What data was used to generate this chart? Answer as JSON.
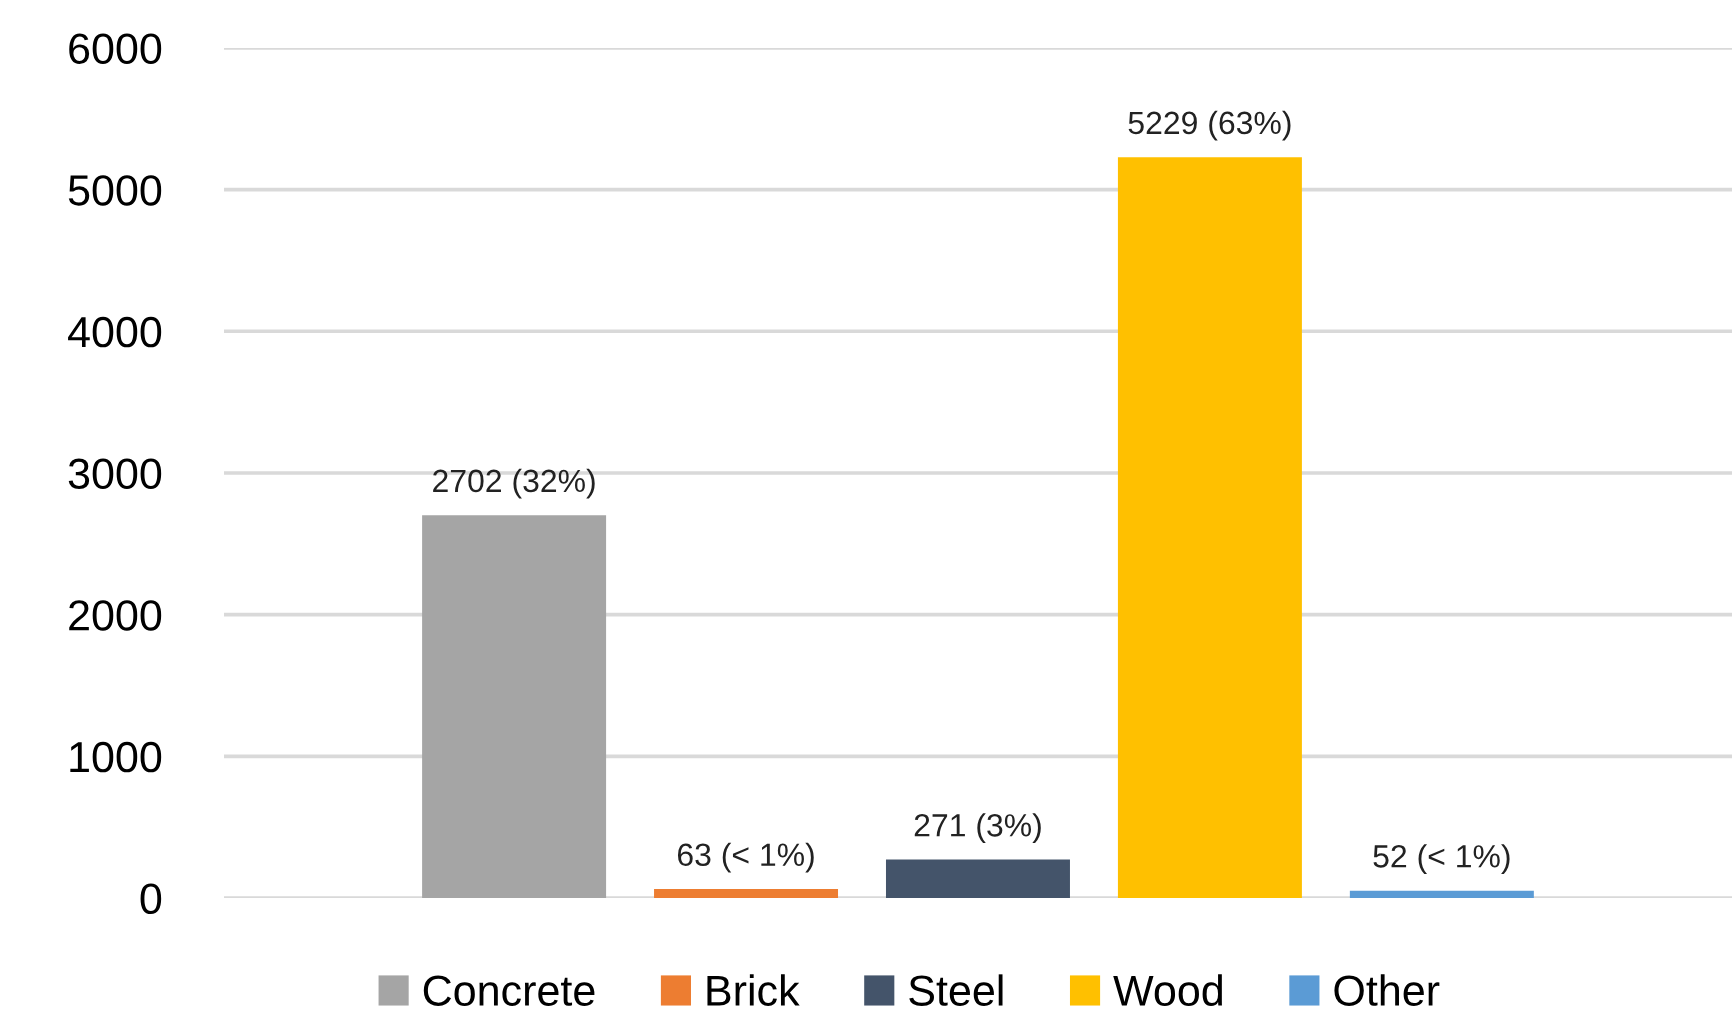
{
  "chart_data": {
    "type": "bar",
    "categories": [
      null
    ],
    "series": [
      {
        "name": "Concrete",
        "color": "#a5a5a5",
        "values": [
          2702
        ],
        "value_labels": [
          "2702 (32%)"
        ]
      },
      {
        "name": "Brick",
        "color": "#ed7d31",
        "values": [
          63
        ],
        "value_labels": [
          "63 (< 1%)"
        ]
      },
      {
        "name": "Steel",
        "color": "#44546a",
        "values": [
          271
        ],
        "value_labels": [
          "271 (3%)"
        ]
      },
      {
        "name": "Wood",
        "color": "#ffc000",
        "values": [
          5229
        ],
        "value_labels": [
          "5229 (63%)"
        ]
      },
      {
        "name": "Other",
        "color": "#5b9bd5",
        "values": [
          52
        ],
        "value_labels": [
          "52 (< 1%)"
        ]
      }
    ],
    "ylim": [
      0,
      6000
    ],
    "yticks": [
      0,
      1000,
      2000,
      3000,
      4000,
      5000,
      6000
    ],
    "grid": "y",
    "legend": "bottom"
  }
}
